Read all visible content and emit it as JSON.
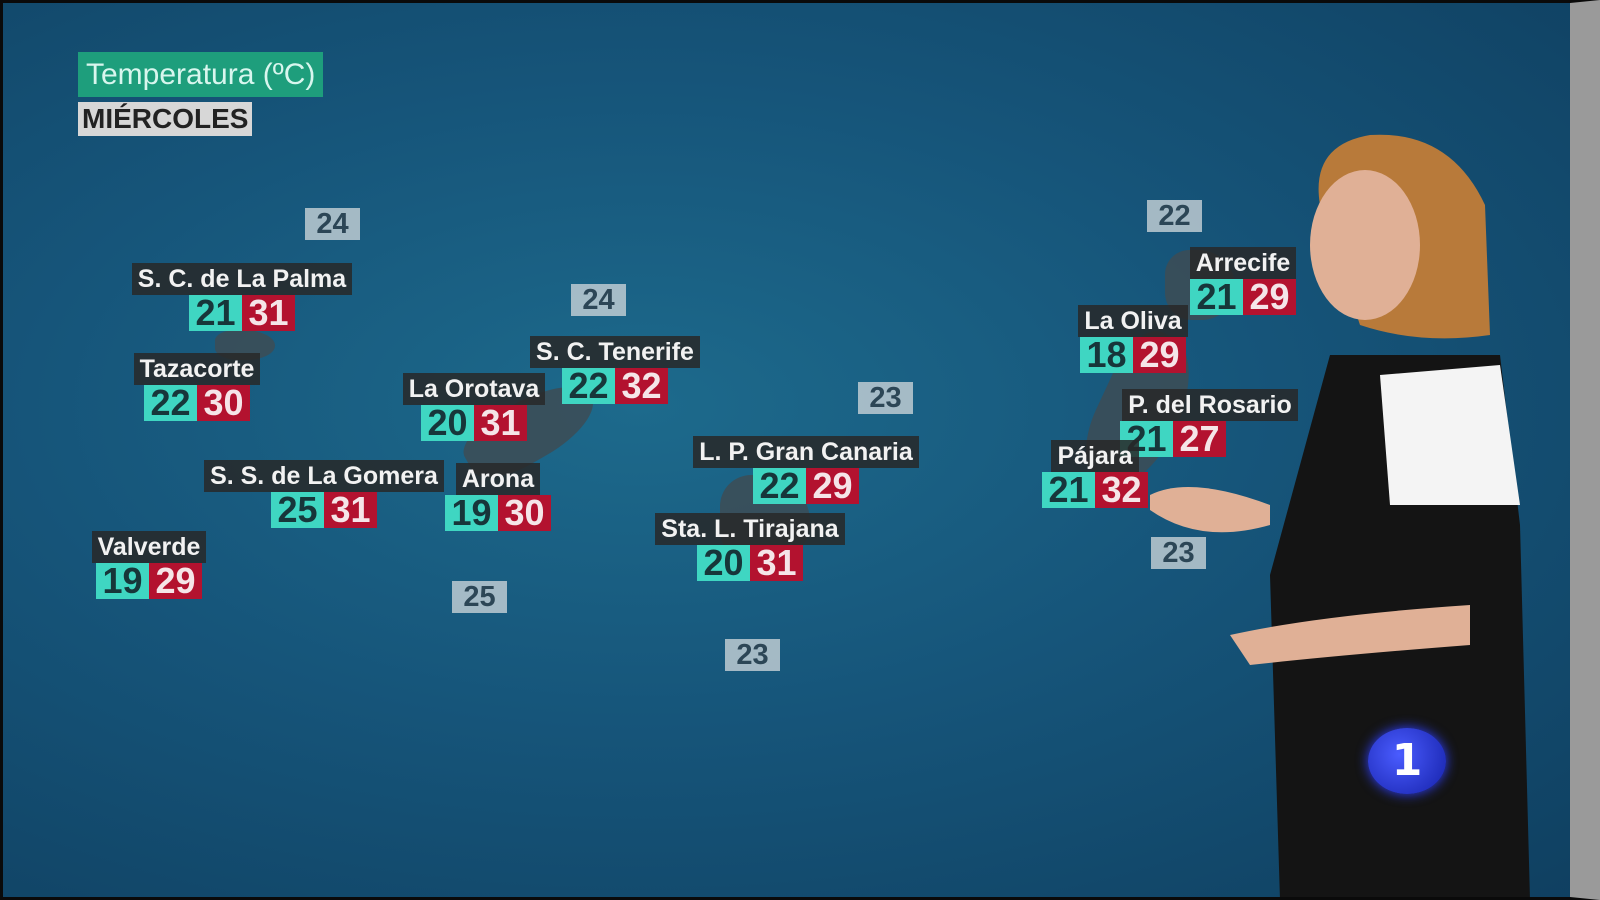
{
  "header": {
    "title": "Temperatura (ºC)",
    "day": "MIÉRCOLES"
  },
  "cities": [
    {
      "name": "S. C. de La Palma",
      "min": "21",
      "max": "31"
    },
    {
      "name": "Tazacorte",
      "min": "22",
      "max": "30"
    },
    {
      "name": "S. S. de La Gomera",
      "min": "25",
      "max": "31"
    },
    {
      "name": "Valverde",
      "min": "19",
      "max": "29"
    },
    {
      "name": "La Orotava",
      "min": "20",
      "max": "31"
    },
    {
      "name": "Arona",
      "min": "19",
      "max": "30"
    },
    {
      "name": "S. C. Tenerife",
      "min": "22",
      "max": "32"
    },
    {
      "name": "L. P. Gran Canaria",
      "min": "22",
      "max": "29"
    },
    {
      "name": "Sta. L. Tirajana",
      "min": "20",
      "max": "31"
    },
    {
      "name": "Arrecife",
      "min": "21",
      "max": "29"
    },
    {
      "name": "La Oliva",
      "min": "18",
      "max": "29"
    },
    {
      "name": "P. del Rosario",
      "min": "21",
      "max": "27"
    },
    {
      "name": "Pájara",
      "min": "21",
      "max": "32"
    }
  ],
  "sea_temps": [
    "24",
    "24",
    "23",
    "22",
    "23",
    "25",
    "23"
  ],
  "logo": "1",
  "colors": {
    "min": "#3fd6c2",
    "max": "#b3122f",
    "header": "#1e9e7c"
  }
}
